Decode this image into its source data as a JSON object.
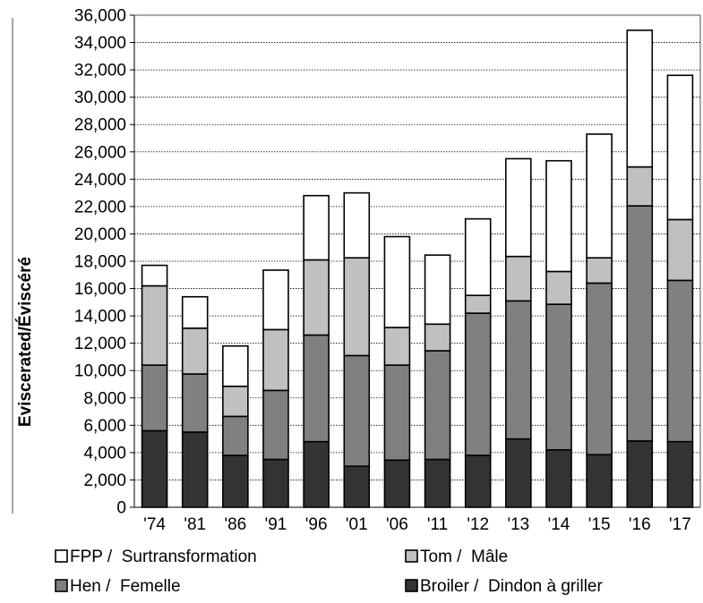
{
  "chart_data": {
    "type": "bar",
    "stacked": true,
    "ylabel": "Eviscerated/Éviscéré",
    "ylim": [
      0,
      36000
    ],
    "ytick_step": 2000,
    "grid": true,
    "legend_position": "bottom",
    "categories": [
      "'74",
      "'81",
      "'86",
      "'91",
      "'96",
      "'01",
      "'06",
      "'11",
      "'12",
      "'13",
      "'14",
      "'15",
      "'16",
      "'17"
    ],
    "series": [
      {
        "name": "Broiler /  Dindon à griller",
        "color": "#333333",
        "values": [
          5600,
          5500,
          3800,
          3500,
          4800,
          3000,
          3450,
          3500,
          3800,
          5000,
          4200,
          3850,
          4850,
          4800
        ]
      },
      {
        "name": "Hen /  Femelle",
        "color": "#808080",
        "values": [
          4800,
          4250,
          2850,
          5050,
          7800,
          8100,
          6950,
          7950,
          10400,
          10100,
          10650,
          12550,
          17200,
          11800
        ]
      },
      {
        "name": "Tom /  Mâle",
        "color": "#c0c0c0",
        "values": [
          5800,
          3350,
          2200,
          4450,
          5500,
          7150,
          2750,
          1950,
          1300,
          3250,
          2400,
          1850,
          2850,
          4450
        ]
      },
      {
        "name": "FPP /  Surtransformation",
        "color": "#ffffff",
        "values": [
          1500,
          2300,
          2950,
          4350,
          4700,
          4750,
          6650,
          5050,
          5600,
          7150,
          8100,
          9050,
          10000,
          10550
        ]
      }
    ],
    "legend_layout": [
      [
        "FPP /  Surtransformation",
        "Tom /  Mâle"
      ],
      [
        "Hen /  Femelle",
        "Broiler /  Dindon à griller"
      ]
    ]
  }
}
